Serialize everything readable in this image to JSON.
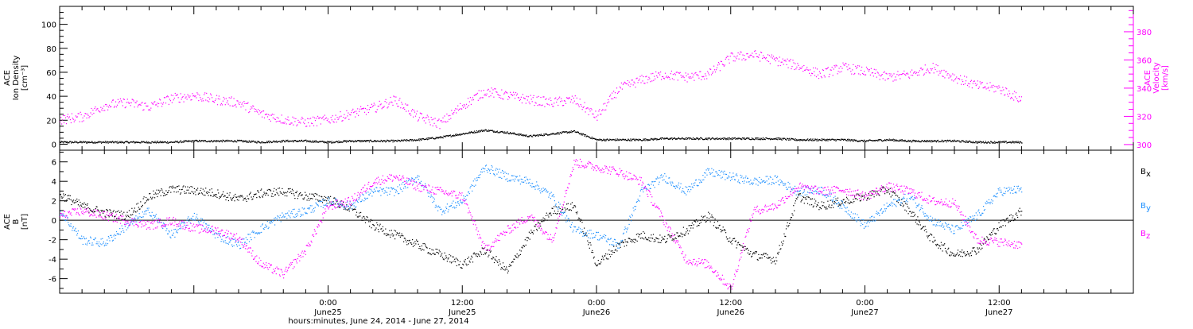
{
  "colors": {
    "ink": "#000000",
    "density": "#000000",
    "velocity": "#ff00ff",
    "bx": "#000000",
    "by": "#1e90ff",
    "bz": "#ff00ff"
  },
  "chart_data": [
    {
      "type": "scatter",
      "panel": "plasma",
      "ylabel_left": [
        "ACE",
        "Ion Density",
        "[cm⁻³]"
      ],
      "ylabel_right": [
        "ACE",
        "Velocity",
        "[km/s]"
      ],
      "ylim_left": [
        -5,
        115
      ],
      "ylim_right": [
        296,
        398
      ],
      "yticks_left": [
        0,
        20,
        40,
        60,
        80,
        100
      ],
      "yticks_right": [
        300,
        320,
        340,
        360,
        380
      ],
      "x_unit": "hours since June 24, 2014 00:00",
      "series": [
        {
          "key": "density",
          "axis": "left",
          "x": [
            0,
            2,
            4,
            6,
            8,
            10,
            12,
            14,
            16,
            18,
            20,
            22,
            24,
            26,
            28,
            30,
            32,
            34,
            36,
            38,
            40,
            42,
            44,
            46,
            48,
            50,
            52,
            54,
            56,
            58,
            60,
            62,
            64,
            66,
            68,
            70,
            72,
            74,
            76,
            78,
            80,
            82,
            84,
            86
          ],
          "values": [
            2,
            2,
            2,
            2,
            2,
            2,
            3,
            3,
            3,
            2,
            3,
            3,
            2,
            3,
            3,
            3,
            4,
            6,
            9,
            12,
            10,
            7,
            9,
            11,
            4,
            4,
            4,
            5,
            5,
            5,
            5,
            5,
            5,
            4,
            4,
            4,
            3,
            4,
            3,
            3,
            3,
            2,
            2,
            2
          ]
        },
        {
          "key": "velocity",
          "axis": "right",
          "x": [
            0,
            2,
            4,
            6,
            8,
            10,
            12,
            14,
            16,
            18,
            20,
            22,
            24,
            26,
            28,
            30,
            32,
            34,
            36,
            38,
            40,
            42,
            44,
            46,
            48,
            50,
            52,
            54,
            56,
            58,
            60,
            62,
            64,
            66,
            68,
            70,
            72,
            74,
            76,
            78,
            80,
            82,
            84,
            86
          ],
          "values": [
            318,
            320,
            328,
            330,
            327,
            333,
            335,
            332,
            330,
            322,
            318,
            316,
            318,
            322,
            326,
            332,
            320,
            315,
            328,
            338,
            335,
            332,
            330,
            332,
            320,
            340,
            346,
            350,
            348,
            350,
            362,
            364,
            360,
            356,
            350,
            355,
            352,
            348,
            350,
            355,
            348,
            342,
            340,
            332
          ]
        }
      ]
    },
    {
      "type": "scatter",
      "panel": "magnetic-field",
      "ylabel_left": [
        "ACE",
        "B",
        "[nT]"
      ],
      "ylim": [
        -7.5,
        7.2
      ],
      "yticks": [
        -6,
        -4,
        -2,
        0,
        2,
        4,
        6
      ],
      "legend": [
        "B",
        "B",
        "B"
      ],
      "legend_sub": [
        "x",
        "y",
        "z"
      ],
      "legend_position": "right",
      "x_unit": "hours since June 24, 2014 00:00",
      "xtick_labels": [
        {
          "x": 24,
          "time": "0:00",
          "date": "June25"
        },
        {
          "x": 36,
          "time": "12:00",
          "date": "June25"
        },
        {
          "x": 48,
          "time": "0:00",
          "date": "June26"
        },
        {
          "x": 60,
          "time": "12:00",
          "date": "June26"
        },
        {
          "x": 72,
          "time": "0:00",
          "date": "June27"
        },
        {
          "x": 84,
          "time": "12:00",
          "date": "June27"
        }
      ],
      "xlim": [
        0,
        96
      ],
      "xlabel": "hours:minutes, June 24, 2014 - June 27, 2014",
      "series": [
        {
          "key": "bx",
          "x": [
            0,
            2,
            4,
            6,
            8,
            10,
            12,
            14,
            16,
            18,
            20,
            22,
            24,
            26,
            28,
            30,
            32,
            34,
            36,
            38,
            40,
            42,
            44,
            46,
            48,
            50,
            52,
            54,
            56,
            58,
            60,
            62,
            64,
            66,
            68,
            70,
            72,
            74,
            76,
            78,
            80,
            82,
            84,
            86
          ],
          "values": [
            2.7,
            1.5,
            0.8,
            0.5,
            2.5,
            3.2,
            3.1,
            2.8,
            2.2,
            2.8,
            3.0,
            2.5,
            2.2,
            1.2,
            -0.5,
            -1.5,
            -2.5,
            -3.5,
            -4.5,
            -3.0,
            -5.2,
            -1.5,
            1.0,
            1.5,
            -4.5,
            -2.5,
            -1.5,
            -2.0,
            -1.0,
            0.5,
            -2.0,
            -3.5,
            -4.0,
            2.5,
            1.5,
            2.0,
            2.5,
            3.2,
            1.0,
            -2.0,
            -3.5,
            -3.0,
            -0.5,
            1.0
          ]
        },
        {
          "key": "by",
          "x": [
            0,
            2,
            4,
            6,
            8,
            10,
            12,
            14,
            16,
            18,
            20,
            22,
            24,
            26,
            28,
            30,
            32,
            34,
            36,
            38,
            40,
            42,
            44,
            46,
            48,
            50,
            52,
            54,
            56,
            58,
            60,
            62,
            64,
            66,
            68,
            70,
            72,
            74,
            76,
            78,
            80,
            82,
            84,
            86
          ],
          "values": [
            1.0,
            -2.0,
            -2.3,
            -0.5,
            1.0,
            -1.5,
            0.5,
            -1.5,
            -2.5,
            -0.8,
            0.5,
            1.0,
            2.0,
            1.5,
            3.0,
            3.0,
            4.5,
            1.0,
            2.0,
            5.5,
            4.5,
            4.0,
            2.5,
            -1.0,
            -1.5,
            -2.5,
            3.0,
            4.5,
            3.0,
            5.0,
            4.5,
            4.0,
            4.2,
            3.0,
            3.2,
            1.5,
            -0.5,
            1.5,
            2.5,
            0.0,
            -1.0,
            0.5,
            3.0,
            3.2
          ]
        },
        {
          "key": "bz",
          "x": [
            0,
            2,
            4,
            6,
            8,
            10,
            12,
            14,
            16,
            18,
            20,
            22,
            24,
            26,
            28,
            30,
            32,
            34,
            36,
            38,
            40,
            42,
            44,
            46,
            48,
            50,
            52,
            54,
            56,
            58,
            60,
            62,
            64,
            66,
            68,
            70,
            72,
            74,
            76,
            78,
            80,
            82,
            84,
            86
          ],
          "values": [
            0.5,
            1.0,
            0.5,
            0.0,
            -0.5,
            0.0,
            -0.8,
            -1.0,
            -1.8,
            -4.5,
            -5.5,
            -3.0,
            1.5,
            2.0,
            4.0,
            4.5,
            3.5,
            3.0,
            2.5,
            -3.0,
            -1.0,
            0.5,
            -2.0,
            6.0,
            5.5,
            5.0,
            4.0,
            0.0,
            -4.0,
            -4.5,
            -7.0,
            1.0,
            1.5,
            3.5,
            3.0,
            3.2,
            2.5,
            3.5,
            3.0,
            2.0,
            1.8,
            -2.0,
            -2.2,
            -2.5
          ]
        }
      ]
    }
  ]
}
